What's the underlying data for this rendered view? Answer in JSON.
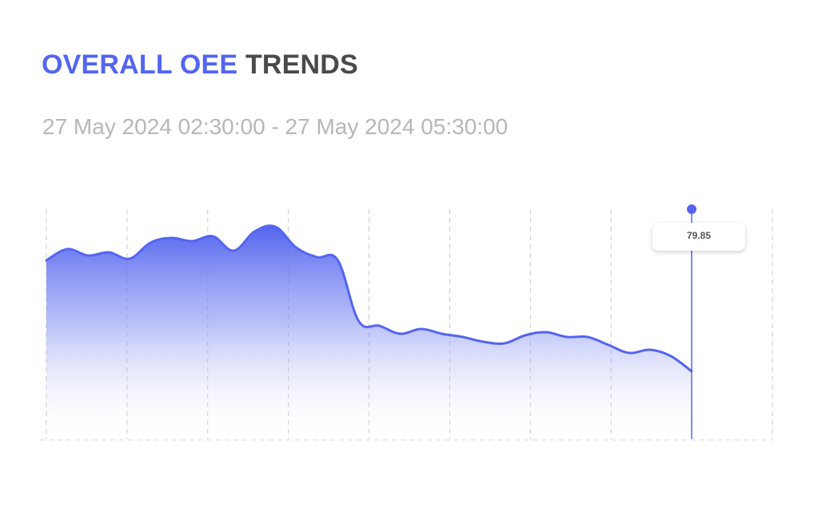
{
  "header": {
    "title_accent": "OVERALL OEE",
    "title_rest": "TRENDS",
    "date_range": "27 May 2024 02:30:00 - 27 May 2024 05:30:00"
  },
  "tooltip": {
    "value": "79.85"
  },
  "colors": {
    "accent": "#5465ef",
    "title_dark": "#4a4a4a",
    "subtitle": "#b7b7b7",
    "grid": "#c8c8c8"
  },
  "chart_data": {
    "type": "area",
    "title": "OVERALL OEE TRENDS",
    "xlabel": "",
    "ylabel": "",
    "x_segments": 9,
    "grid": "vertical dashed",
    "cursor_index": 31,
    "series": [
      {
        "values": [
          86.8,
          87.5,
          87.1,
          87.3,
          86.9,
          87.9,
          88.2,
          88.0,
          88.3,
          87.4,
          88.6,
          88.9,
          87.6,
          87.0,
          86.8,
          83.0,
          82.7,
          82.2,
          82.5,
          82.2,
          82.0,
          81.7,
          81.6,
          82.1,
          82.3,
          82.0,
          82.0,
          81.5,
          81.0,
          81.2,
          80.8,
          79.85
        ]
      }
    ]
  }
}
